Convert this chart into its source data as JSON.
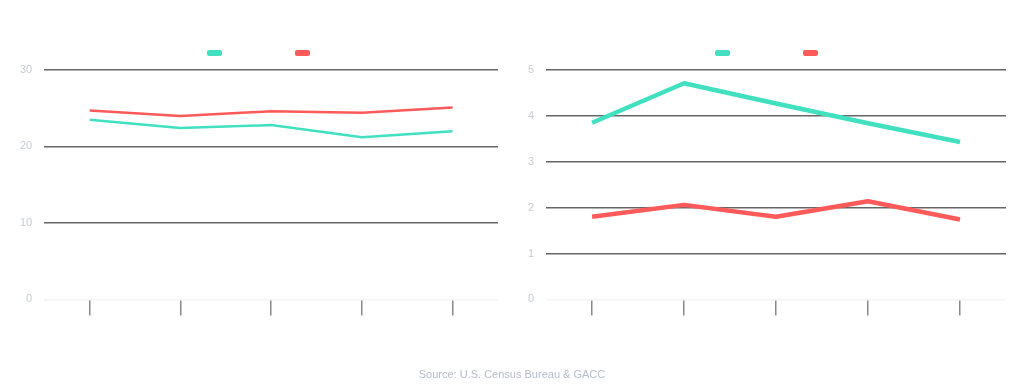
{
  "chart_data": [
    {
      "type": "line",
      "categories": [
        null,
        null,
        null,
        null,
        null
      ],
      "series": [
        {
          "color": "#40e0c0",
          "values": [
            23.5,
            22.4,
            22.8,
            21.2,
            22.0
          ]
        },
        {
          "color": "#ff5a5a",
          "values": [
            24.7,
            24.0,
            24.6,
            24.4,
            25.1
          ]
        }
      ],
      "ylim": [
        0,
        30
      ],
      "yticks": [
        0,
        10,
        20,
        30
      ],
      "grid": "y",
      "tick_labels": "y"
    },
    {
      "type": "line",
      "categories": [
        null,
        null,
        null,
        null,
        null
      ],
      "series": [
        {
          "color": "#40e0c0",
          "values": [
            3.85,
            4.71,
            4.27,
            3.84,
            3.43
          ]
        },
        {
          "color": "#ff5a5a",
          "values": [
            1.8,
            2.06,
            1.8,
            2.14,
            1.74
          ]
        }
      ],
      "ylim": [
        0,
        5
      ],
      "yticks": [
        0,
        1,
        2,
        3,
        4,
        5
      ],
      "grid": "y",
      "tick_labels": "y",
      "annotations": [
        "Source: U.S. Census Bureau & GACC"
      ]
    }
  ]
}
